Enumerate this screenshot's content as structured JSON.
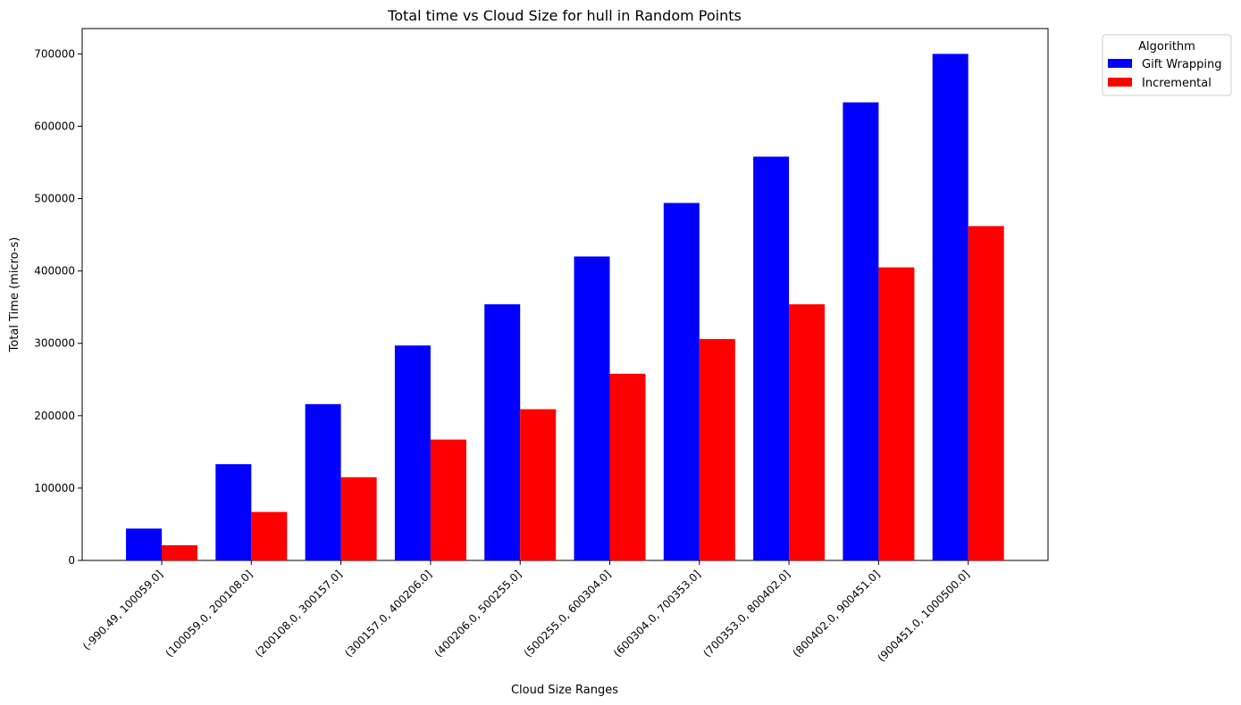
{
  "chart_data": {
    "type": "bar",
    "title": "Total time vs Cloud Size for hull in Random Points",
    "xlabel": "Cloud Size Ranges",
    "ylabel": "Total Time (micro-s)",
    "ylim": [
      0,
      735000
    ],
    "yticks": [
      0,
      100000,
      200000,
      300000,
      400000,
      500000,
      600000,
      700000
    ],
    "grid": false,
    "legend": {
      "title": "Algorithm",
      "placement": "outside-top-right"
    },
    "categories": [
      "(-990.49, 100059.0]",
      "(100059.0, 200108.0]",
      "(200108.0, 300157.0]",
      "(300157.0, 400206.0]",
      "(400206.0, 500255.0]",
      "(500255.0, 600304.0]",
      "(600304.0, 700353.0]",
      "(700353.0, 800402.0]",
      "(800402.0, 900451.0]",
      "(900451.0, 1000500.0]"
    ],
    "series": [
      {
        "name": "Gift Wrapping",
        "color": "#0000ff",
        "values": [
          44000,
          133000,
          216000,
          297000,
          354000,
          420000,
          494000,
          558000,
          633000,
          700000
        ]
      },
      {
        "name": "Incremental",
        "color": "#ff0000",
        "values": [
          21000,
          67000,
          115000,
          167000,
          209000,
          258000,
          306000,
          354000,
          405000,
          462000
        ]
      }
    ]
  }
}
